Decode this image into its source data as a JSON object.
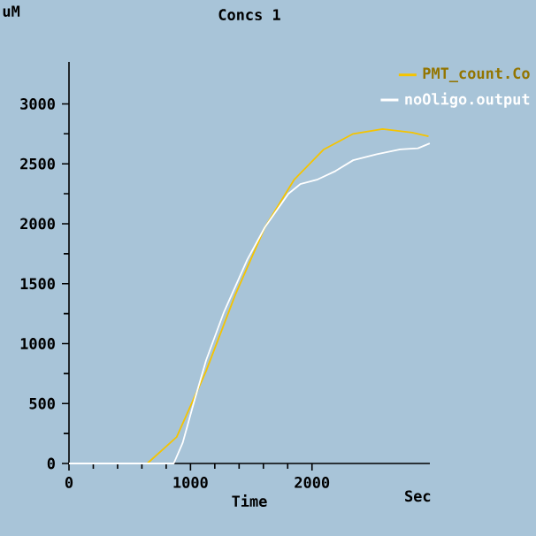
{
  "chart_data": {
    "type": "line",
    "title": "Concs 1",
    "xlabel": "Time",
    "ylabel": "uM",
    "annotations": [
      "Sec"
    ],
    "xlim": [
      0,
      2970
    ],
    "ylim": [
      0,
      3350
    ],
    "xticks": [
      0,
      1000,
      2000
    ],
    "yticks": [
      0,
      500,
      1000,
      1500,
      2000,
      2500,
      3000
    ],
    "legend": "top right",
    "grid": false,
    "marker": "none",
    "line_style": "solid",
    "series": [
      {
        "name": "PMT_count.Co",
        "color": "#f5c400",
        "x": [
          0,
          644,
          886,
          1128,
          1370,
          1612,
          1855,
          2097,
          2339,
          2581,
          2823,
          2959
        ],
        "values": [
          0,
          0,
          220,
          770,
          1410,
          1970,
          2370,
          2620,
          2750,
          2790,
          2760,
          2730
        ]
      },
      {
        "name": "noOligo.output",
        "color": "#ffffff",
        "x": [
          0,
          862,
          935,
          1031,
          1128,
          1274,
          1467,
          1612,
          1806,
          1903,
          2048,
          2194,
          2339,
          2533,
          2726,
          2872,
          2969
        ],
        "values": [
          0,
          0,
          170,
          520,
          860,
          1260,
          1700,
          1970,
          2250,
          2330,
          2370,
          2440,
          2530,
          2580,
          2620,
          2630,
          2670
        ]
      }
    ]
  }
}
